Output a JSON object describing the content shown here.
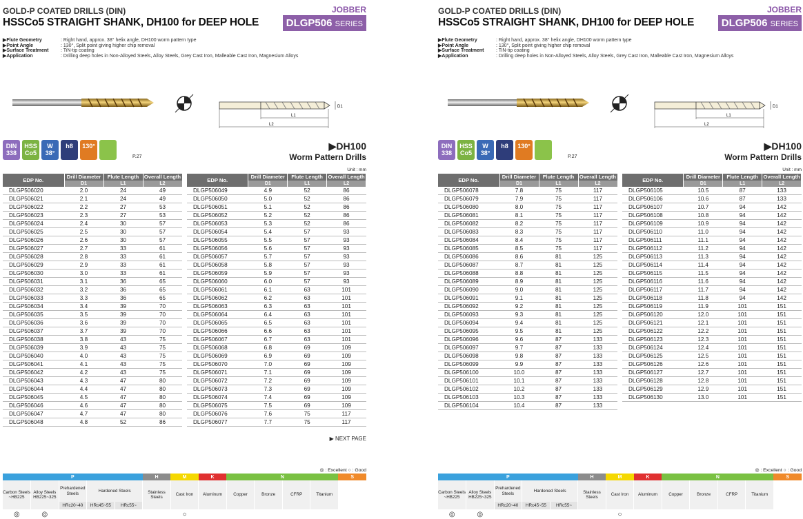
{
  "pages": [
    {
      "category": "GOLD-P COATED DRILLS (DIN)",
      "jobber": "JOBBER",
      "title": "HSSCo5 STRAIGHT SHANK, DH100 for DEEP HOLE",
      "series_code": "DLGP506",
      "series_word": "SERIES",
      "specs": [
        {
          "k": "▶Flute Geometry",
          "v": ": Right hand, approx. 38° helix angle, DH100 worm pattern type"
        },
        {
          "k": "▶Point Angle",
          "v": ": 130°, Split point giving higher chip removal"
        },
        {
          "k": "▶Surface Treatment",
          "v": ": TiN-tip coating"
        },
        {
          "k": "▶Application",
          "v": ": Drilling deep holes in Non-Alloyed Steels, Alloy Steels, Grey Cast Iron, Malleable Cast Iron, Magnesium Alloys"
        }
      ],
      "dim_labels": {
        "d1": "D1",
        "l1": "L1",
        "l2": "L2"
      },
      "icons": [
        {
          "name": "din-icon",
          "t1": "DIN",
          "t2": "338",
          "color": "pur"
        },
        {
          "name": "hss-icon",
          "t1": "HSS",
          "t2": "Co5",
          "color": "grn"
        },
        {
          "name": "helix-icon",
          "t1": "W",
          "t2": "38°",
          "color": "blu"
        },
        {
          "name": "tolerance-icon",
          "t1": "",
          "t2": "h8",
          "color": "nav"
        },
        {
          "name": "point-angle-icon",
          "t1": "",
          "t2": "130°",
          "color": "org"
        },
        {
          "name": "split-point-icon",
          "t1": "",
          "t2": "",
          "color": "lgr"
        }
      ],
      "page_ref": "P.27",
      "dh_title": "▶DH100",
      "dh_sub": "Worm Pattern Drills",
      "unit": "Unit : mm",
      "headers": {
        "edp": "EDP No.",
        "dia": "Drill Diameter",
        "flute": "Flute Length",
        "overall": "Overall Length",
        "d1": "D1",
        "l1": "L1",
        "l2": "L2"
      },
      "table1": [
        [
          "DLGP506020",
          "2.0",
          "24",
          "49"
        ],
        [
          "DLGP506021",
          "2.1",
          "24",
          "49"
        ],
        [
          "DLGP506022",
          "2.2",
          "27",
          "53"
        ],
        [
          "DLGP506023",
          "2.3",
          "27",
          "53"
        ],
        [
          "DLGP506024",
          "2.4",
          "30",
          "57"
        ],
        [
          "DLGP506025",
          "2.5",
          "30",
          "57"
        ],
        [
          "DLGP506026",
          "2.6",
          "30",
          "57"
        ],
        [
          "DLGP506027",
          "2.7",
          "33",
          "61"
        ],
        [
          "DLGP506028",
          "2.8",
          "33",
          "61"
        ],
        [
          "DLGP506029",
          "2.9",
          "33",
          "61"
        ],
        [
          "DLGP506030",
          "3.0",
          "33",
          "61"
        ],
        [
          "DLGP506031",
          "3.1",
          "36",
          "65"
        ],
        [
          "DLGP506032",
          "3.2",
          "36",
          "65"
        ],
        [
          "DLGP506033",
          "3.3",
          "36",
          "65"
        ],
        [
          "DLGP506034",
          "3.4",
          "39",
          "70"
        ],
        [
          "DLGP506035",
          "3.5",
          "39",
          "70"
        ],
        [
          "DLGP506036",
          "3.6",
          "39",
          "70"
        ],
        [
          "DLGP506037",
          "3.7",
          "39",
          "70"
        ],
        [
          "DLGP506038",
          "3.8",
          "43",
          "75"
        ],
        [
          "DLGP506039",
          "3.9",
          "43",
          "75"
        ],
        [
          "DLGP506040",
          "4.0",
          "43",
          "75"
        ],
        [
          "DLGP506041",
          "4.1",
          "43",
          "75"
        ],
        [
          "DLGP506042",
          "4.2",
          "43",
          "75"
        ],
        [
          "DLGP506043",
          "4.3",
          "47",
          "80"
        ],
        [
          "DLGP506044",
          "4.4",
          "47",
          "80"
        ],
        [
          "DLGP506045",
          "4.5",
          "47",
          "80"
        ],
        [
          "DLGP506046",
          "4.6",
          "47",
          "80"
        ],
        [
          "DLGP506047",
          "4.7",
          "47",
          "80"
        ],
        [
          "DLGP506048",
          "4.8",
          "52",
          "86"
        ]
      ],
      "table2": [
        [
          "DLGP506049",
          "4.9",
          "52",
          "86"
        ],
        [
          "DLGP506050",
          "5.0",
          "52",
          "86"
        ],
        [
          "DLGP506051",
          "5.1",
          "52",
          "86"
        ],
        [
          "DLGP506052",
          "5.2",
          "52",
          "86"
        ],
        [
          "DLGP506053",
          "5.3",
          "52",
          "86"
        ],
        [
          "DLGP506054",
          "5.4",
          "57",
          "93"
        ],
        [
          "DLGP506055",
          "5.5",
          "57",
          "93"
        ],
        [
          "DLGP506056",
          "5.6",
          "57",
          "93"
        ],
        [
          "DLGP506057",
          "5.7",
          "57",
          "93"
        ],
        [
          "DLGP506058",
          "5.8",
          "57",
          "93"
        ],
        [
          "DLGP506059",
          "5.9",
          "57",
          "93"
        ],
        [
          "DLGP506060",
          "6.0",
          "57",
          "93"
        ],
        [
          "DLGP506061",
          "6.1",
          "63",
          "101"
        ],
        [
          "DLGP506062",
          "6.2",
          "63",
          "101"
        ],
        [
          "DLGP506063",
          "6.3",
          "63",
          "101"
        ],
        [
          "DLGP506064",
          "6.4",
          "63",
          "101"
        ],
        [
          "DLGP506065",
          "6.5",
          "63",
          "101"
        ],
        [
          "DLGP506066",
          "6.6",
          "63",
          "101"
        ],
        [
          "DLGP506067",
          "6.7",
          "63",
          "101"
        ],
        [
          "DLGP506068",
          "6.8",
          "69",
          "109"
        ],
        [
          "DLGP506069",
          "6.9",
          "69",
          "109"
        ],
        [
          "DLGP506070",
          "7.0",
          "69",
          "109"
        ],
        [
          "DLGP506071",
          "7.1",
          "69",
          "109"
        ],
        [
          "DLGP506072",
          "7.2",
          "69",
          "109"
        ],
        [
          "DLGP506073",
          "7.3",
          "69",
          "109"
        ],
        [
          "DLGP506074",
          "7.4",
          "69",
          "109"
        ],
        [
          "DLGP506075",
          "7.5",
          "69",
          "109"
        ],
        [
          "DLGP506076",
          "7.6",
          "75",
          "117"
        ],
        [
          "DLGP506077",
          "7.7",
          "75",
          "117"
        ]
      ],
      "next_page": "▶ NEXT PAGE",
      "legend": "◎ : Excellent  ○ : Good",
      "groups": [
        {
          "label": "P",
          "color": "#3aa1dd",
          "span": 5
        },
        {
          "label": "H",
          "color": "#8c8c8c",
          "span": 1
        },
        {
          "label": "M",
          "color": "#f5d800",
          "span": 1
        },
        {
          "label": "K",
          "color": "#e03030",
          "span": 1
        },
        {
          "label": "N",
          "color": "#7ac143",
          "span": 4
        },
        {
          "label": "S",
          "color": "#f08a2a",
          "span": 1
        }
      ],
      "materials": [
        "Carbon Steels",
        "Alloy Steels",
        "Prehardened Steels",
        "Hardened Steels",
        "",
        "Stainless Steels",
        "Cast Iron",
        "Aluminum",
        "Copper",
        "Bronze",
        "CFRP",
        "Titanium"
      ],
      "hardness": [
        "~HB225",
        "HB225~325",
        "HRc20~40",
        "HRc45~55",
        "HRc55~"
      ],
      "ratings": [
        "◎",
        "◎",
        "",
        "",
        "",
        "",
        "○",
        "",
        "",
        "",
        "",
        ""
      ]
    },
    {
      "category": "GOLD-P COATED DRILLS (DIN)",
      "jobber": "JOBBER",
      "title": "HSSCo5 STRAIGHT SHANK, DH100 for DEEP HOLE",
      "series_code": "DLGP506",
      "series_word": "SERIES",
      "specs": [
        {
          "k": "▶Flute Geometry",
          "v": ": Right hand, approx. 38° helix angle, DH100 worm pattern type"
        },
        {
          "k": "▶Point Angle",
          "v": ": 130°, Split point giving higher chip removal"
        },
        {
          "k": "▶Surface Treatment",
          "v": ": TiN-tip coating"
        },
        {
          "k": "▶Application",
          "v": ": Drilling deep holes in Non-Alloyed Steels, Alloy Steels, Grey Cast Iron, Malleable Cast Iron, Magnesium Alloys"
        }
      ],
      "dim_labels": {
        "d1": "D1",
        "l1": "L1",
        "l2": "L2"
      },
      "icons": [
        {
          "name": "din-icon",
          "t1": "DIN",
          "t2": "338",
          "color": "pur"
        },
        {
          "name": "hss-icon",
          "t1": "HSS",
          "t2": "Co5",
          "color": "grn"
        },
        {
          "name": "helix-icon",
          "t1": "W",
          "t2": "38°",
          "color": "blu"
        },
        {
          "name": "tolerance-icon",
          "t1": "",
          "t2": "h8",
          "color": "nav"
        },
        {
          "name": "point-angle-icon",
          "t1": "",
          "t2": "130°",
          "color": "org"
        },
        {
          "name": "split-point-icon",
          "t1": "",
          "t2": "",
          "color": "lgr"
        }
      ],
      "page_ref": "P.27",
      "dh_title": "▶DH100",
      "dh_sub": "Worm Pattern Drills",
      "unit": "Unit : mm",
      "headers": {
        "edp": "EDP No.",
        "dia": "Drill Diameter",
        "flute": "Flute Length",
        "overall": "Overall Length",
        "d1": "D1",
        "l1": "L1",
        "l2": "L2"
      },
      "table1": [
        [
          "DLGP506078",
          "7.8",
          "75",
          "117"
        ],
        [
          "DLGP506079",
          "7.9",
          "75",
          "117"
        ],
        [
          "DLGP506080",
          "8.0",
          "75",
          "117"
        ],
        [
          "DLGP506081",
          "8.1",
          "75",
          "117"
        ],
        [
          "DLGP506082",
          "8.2",
          "75",
          "117"
        ],
        [
          "DLGP506083",
          "8.3",
          "75",
          "117"
        ],
        [
          "DLGP506084",
          "8.4",
          "75",
          "117"
        ],
        [
          "DLGP506085",
          "8.5",
          "75",
          "117"
        ],
        [
          "DLGP506086",
          "8.6",
          "81",
          "125"
        ],
        [
          "DLGP506087",
          "8.7",
          "81",
          "125"
        ],
        [
          "DLGP506088",
          "8.8",
          "81",
          "125"
        ],
        [
          "DLGP506089",
          "8.9",
          "81",
          "125"
        ],
        [
          "DLGP506090",
          "9.0",
          "81",
          "125"
        ],
        [
          "DLGP506091",
          "9.1",
          "81",
          "125"
        ],
        [
          "DLGP506092",
          "9.2",
          "81",
          "125"
        ],
        [
          "DLGP506093",
          "9.3",
          "81",
          "125"
        ],
        [
          "DLGP506094",
          "9.4",
          "81",
          "125"
        ],
        [
          "DLGP506095",
          "9.5",
          "81",
          "125"
        ],
        [
          "DLGP506096",
          "9.6",
          "87",
          "133"
        ],
        [
          "DLGP506097",
          "9.7",
          "87",
          "133"
        ],
        [
          "DLGP506098",
          "9.8",
          "87",
          "133"
        ],
        [
          "DLGP506099",
          "9.9",
          "87",
          "133"
        ],
        [
          "DLGP506100",
          "10.0",
          "87",
          "133"
        ],
        [
          "DLGP506101",
          "10.1",
          "87",
          "133"
        ],
        [
          "DLGP506102",
          "10.2",
          "87",
          "133"
        ],
        [
          "DLGP506103",
          "10.3",
          "87",
          "133"
        ],
        [
          "DLGP506104",
          "10.4",
          "87",
          "133"
        ]
      ],
      "table2": [
        [
          "DLGP506105",
          "10.5",
          "87",
          "133"
        ],
        [
          "DLGP506106",
          "10.6",
          "87",
          "133"
        ],
        [
          "DLGP506107",
          "10.7",
          "94",
          "142"
        ],
        [
          "DLGP506108",
          "10.8",
          "94",
          "142"
        ],
        [
          "DLGP506109",
          "10.9",
          "94",
          "142"
        ],
        [
          "DLGP506110",
          "11.0",
          "94",
          "142"
        ],
        [
          "DLGP506111",
          "11.1",
          "94",
          "142"
        ],
        [
          "DLGP506112",
          "11.2",
          "94",
          "142"
        ],
        [
          "DLGP506113",
          "11.3",
          "94",
          "142"
        ],
        [
          "DLGP506114",
          "11.4",
          "94",
          "142"
        ],
        [
          "DLGP506115",
          "11.5",
          "94",
          "142"
        ],
        [
          "DLGP506116",
          "11.6",
          "94",
          "142"
        ],
        [
          "DLGP506117",
          "11.7",
          "94",
          "142"
        ],
        [
          "DLGP506118",
          "11.8",
          "94",
          "142"
        ],
        [
          "DLGP506119",
          "11.9",
          "101",
          "151"
        ],
        [
          "DLGP506120",
          "12.0",
          "101",
          "151"
        ],
        [
          "DLGP506121",
          "12.1",
          "101",
          "151"
        ],
        [
          "DLGP506122",
          "12.2",
          "101",
          "151"
        ],
        [
          "DLGP506123",
          "12.3",
          "101",
          "151"
        ],
        [
          "DLGP506124",
          "12.4",
          "101",
          "151"
        ],
        [
          "DLGP506125",
          "12.5",
          "101",
          "151"
        ],
        [
          "DLGP506126",
          "12.6",
          "101",
          "151"
        ],
        [
          "DLGP506127",
          "12.7",
          "101",
          "151"
        ],
        [
          "DLGP506128",
          "12.8",
          "101",
          "151"
        ],
        [
          "DLGP506129",
          "12.9",
          "101",
          "151"
        ],
        [
          "DLGP506130",
          "13.0",
          "101",
          "151"
        ]
      ],
      "next_page": "",
      "legend": "◎ : Excellent  ○ : Good",
      "groups": [
        {
          "label": "P",
          "color": "#3aa1dd",
          "span": 5
        },
        {
          "label": "H",
          "color": "#8c8c8c",
          "span": 1
        },
        {
          "label": "M",
          "color": "#f5d800",
          "span": 1
        },
        {
          "label": "K",
          "color": "#e03030",
          "span": 1
        },
        {
          "label": "N",
          "color": "#7ac143",
          "span": 4
        },
        {
          "label": "S",
          "color": "#f08a2a",
          "span": 1
        }
      ],
      "materials": [
        "Carbon Steels",
        "Alloy Steels",
        "Prehardened Steels",
        "Hardened Steels",
        "",
        "Stainless Steels",
        "Cast Iron",
        "Aluminum",
        "Copper",
        "Bronze",
        "CFRP",
        "Titanium"
      ],
      "hardness": [
        "~HB225",
        "HB225~325",
        "HRc20~40",
        "HRc45~55",
        "HRc55~"
      ],
      "ratings": [
        "◎",
        "◎",
        "",
        "",
        "",
        "",
        "○",
        "",
        "",
        "",
        "",
        ""
      ]
    }
  ]
}
